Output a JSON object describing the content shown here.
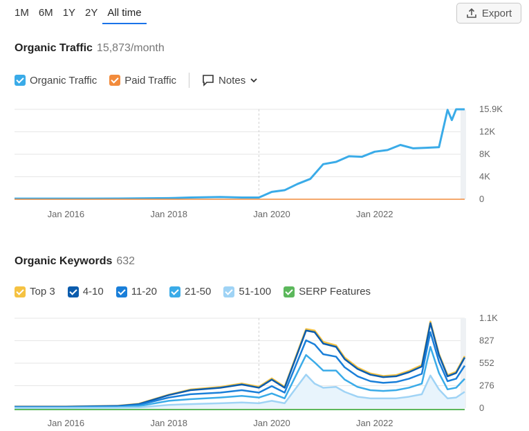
{
  "range_tabs": [
    "1M",
    "6M",
    "1Y",
    "2Y",
    "All time"
  ],
  "active_range": "All time",
  "export_label": "Export",
  "traffic": {
    "title": "Organic Traffic",
    "value": "15,873/month",
    "legend": [
      {
        "label": "Organic Traffic",
        "color": "#3aabe8"
      },
      {
        "label": "Paid Traffic",
        "color": "#f28b3c"
      }
    ],
    "notes_label": "Notes"
  },
  "keywords": {
    "title": "Organic Keywords",
    "value": "632",
    "legend": [
      {
        "label": "Top 3",
        "color": "#f5c242"
      },
      {
        "label": "4-10",
        "color": "#0b5cad"
      },
      {
        "label": "11-20",
        "color": "#1a7fd9"
      },
      {
        "label": "21-50",
        "color": "#3aabe8"
      },
      {
        "label": "51-100",
        "color": "#9fd3f5"
      },
      {
        "label": "SERP Features",
        "color": "#5cb85c"
      }
    ]
  },
  "chart_data": [
    {
      "type": "line",
      "title": "",
      "x_ticks": [
        "Jan 2016",
        "Jan 2018",
        "Jan 2020",
        "Jan 2022"
      ],
      "y_ticks": [
        "0",
        "4K",
        "8K",
        "12K",
        "15.9K"
      ],
      "ylim": [
        0,
        15900
      ],
      "grid": true,
      "x": [
        "2015-01",
        "2016-01",
        "2017-01",
        "2018-01",
        "2018-06",
        "2019-01",
        "2019-06",
        "2019-10",
        "2020-01",
        "2020-04",
        "2020-07",
        "2020-10",
        "2021-01",
        "2021-04",
        "2021-07",
        "2021-10",
        "2022-01",
        "2022-04",
        "2022-07",
        "2022-10",
        "2023-01",
        "2023-04",
        "2023-06",
        "2023-07",
        "2023-08",
        "2023-09",
        "2023-10"
      ],
      "series": [
        {
          "name": "Organic Traffic",
          "color": "#3aabe8",
          "values": [
            100,
            100,
            120,
            200,
            300,
            400,
            300,
            300,
            1300,
            1600,
            2700,
            3600,
            6200,
            6600,
            7600,
            7500,
            8400,
            8700,
            9600,
            9000,
            9100,
            9200,
            15800,
            14000,
            15900,
            15900,
            15900
          ]
        },
        {
          "name": "Paid Traffic",
          "color": "#f28b3c",
          "values": [
            0,
            0,
            0,
            0,
            0,
            0,
            0,
            0,
            0,
            0,
            0,
            0,
            0,
            0,
            0,
            0,
            0,
            0,
            0,
            0,
            0,
            0,
            0,
            0,
            0,
            0,
            0
          ]
        }
      ]
    },
    {
      "type": "area",
      "title": "",
      "x_ticks": [
        "Jan 2016",
        "Jan 2018",
        "Jan 2020",
        "Jan 2022"
      ],
      "y_ticks": [
        "0",
        "276",
        "552",
        "827",
        "1.1K"
      ],
      "ylim": [
        0,
        1100
      ],
      "grid": true,
      "x": [
        "2015-01",
        "2016-01",
        "2017-01",
        "2017-06",
        "2018-01",
        "2018-06",
        "2019-01",
        "2019-06",
        "2019-10",
        "2020-01",
        "2020-04",
        "2020-09",
        "2020-11",
        "2021-01",
        "2021-04",
        "2021-06",
        "2021-09",
        "2021-12",
        "2022-03",
        "2022-06",
        "2022-09",
        "2022-12",
        "2023-02",
        "2023-04",
        "2023-06",
        "2023-08",
        "2023-10"
      ],
      "series": [
        {
          "name": "Top 3",
          "color": "#f5c242",
          "values": [
            2,
            2,
            3,
            4,
            5,
            8,
            10,
            12,
            12,
            15,
            12,
            18,
            20,
            22,
            18,
            20,
            18,
            15,
            14,
            15,
            16,
            18,
            20,
            15,
            15,
            15,
            16
          ]
        },
        {
          "name": "4-10",
          "color": "#0b5cad",
          "values": [
            5,
            5,
            6,
            10,
            30,
            50,
            60,
            70,
            60,
            80,
            60,
            120,
            150,
            130,
            120,
            100,
            90,
            80,
            70,
            70,
            80,
            90,
            110,
            80,
            60,
            70,
            100
          ]
        },
        {
          "name": "11-20",
          "color": "#1a7fd9",
          "values": [
            5,
            5,
            8,
            15,
            40,
            60,
            60,
            70,
            60,
            90,
            70,
            180,
            220,
            200,
            170,
            150,
            130,
            110,
            100,
            100,
            110,
            120,
            180,
            140,
            100,
            110,
            160
          ]
        },
        {
          "name": "21-50",
          "color": "#3aabe8",
          "values": [
            5,
            5,
            8,
            15,
            50,
            60,
            70,
            80,
            70,
            90,
            60,
            240,
            260,
            210,
            200,
            150,
            120,
            100,
            90,
            100,
            110,
            130,
            350,
            200,
            110,
            120,
            160
          ]
        },
        {
          "name": "51-100",
          "color": "#9fd3f5",
          "values": [
            3,
            3,
            5,
            10,
            40,
            50,
            60,
            70,
            60,
            90,
            60,
            410,
            300,
            250,
            260,
            200,
            140,
            120,
            120,
            120,
            140,
            170,
            400,
            230,
            120,
            130,
            200
          ]
        }
      ]
    }
  ]
}
